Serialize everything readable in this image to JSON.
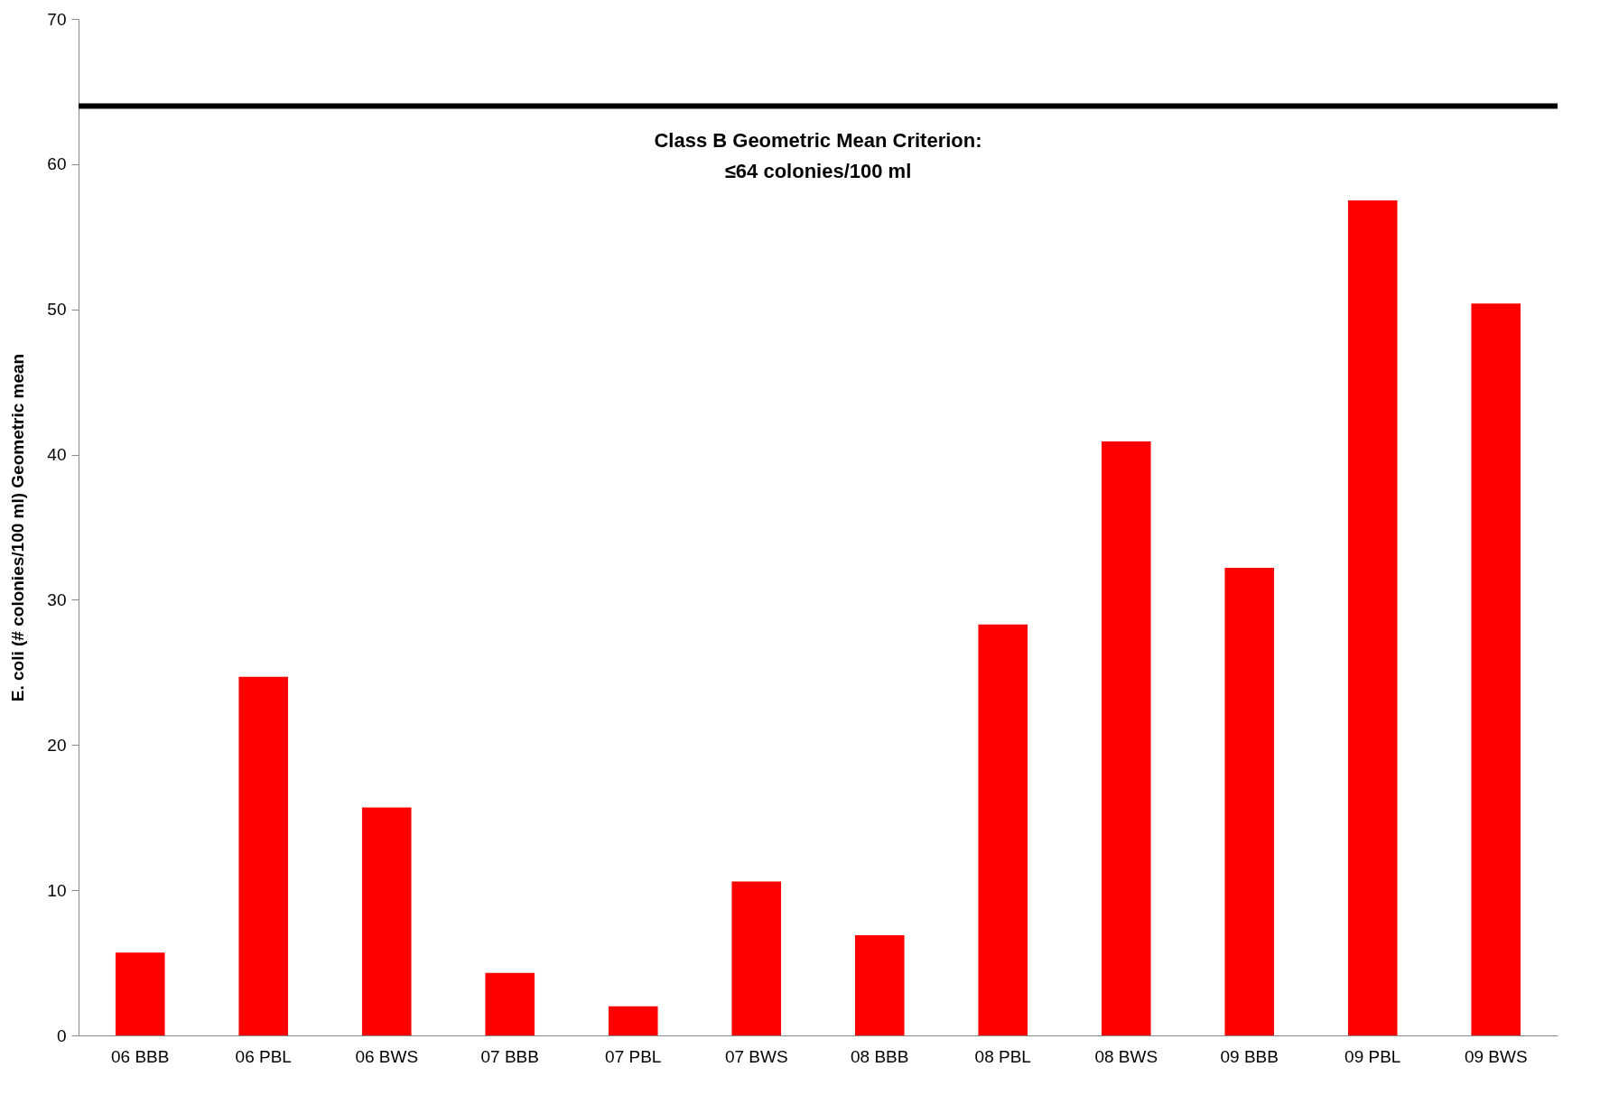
{
  "chart_data": {
    "type": "bar",
    "ylabel": "E. coli (# colonies/100 ml) Geometric mean",
    "categories": [
      "06 BBB",
      "06 PBL",
      "06 BWS",
      "07 BBB",
      "07 PBL",
      "07 BWS",
      "08 BBB",
      "08 PBL",
      "08 BWS",
      "09 BBB",
      "09 PBL",
      "09 BWS"
    ],
    "values": [
      5.7,
      24.7,
      15.7,
      4.3,
      2.0,
      10.6,
      6.9,
      28.3,
      40.9,
      32.2,
      57.5,
      50.4
    ],
    "color": "#ff0000",
    "ylim": [
      0,
      70
    ],
    "yticks": [
      0,
      10,
      20,
      30,
      40,
      50,
      60,
      70
    ],
    "grid": false,
    "ref_lines": [
      {
        "axis": "y",
        "value": 64,
        "label": "Class B Geometric Mean Criterion:\n≤64 colonies/100 ml",
        "color": "#000000"
      }
    ]
  }
}
